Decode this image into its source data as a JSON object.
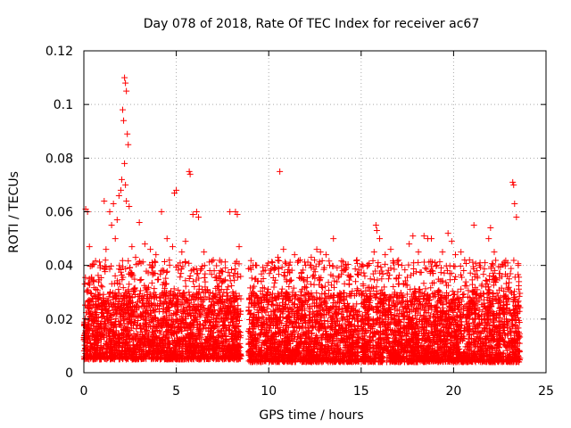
{
  "chart_data": {
    "type": "scatter",
    "title": "Day 078 of 2018, Rate Of TEC Index for receiver ac67",
    "xlabel": "GPS time / hours",
    "ylabel": "ROTI / TECUs",
    "xlim": [
      0,
      25
    ],
    "ylim": [
      0,
      0.12
    ],
    "x_ticks": [
      0,
      5,
      10,
      15,
      20,
      25
    ],
    "x_tick_labels": [
      "0",
      "5",
      "10",
      "15",
      "20",
      "25"
    ],
    "y_ticks": [
      0,
      0.02,
      0.04,
      0.06,
      0.08,
      0.1,
      0.12
    ],
    "y_tick_labels": [
      "0",
      "0.02",
      "0.04",
      "0.06",
      "0.08",
      "0.1",
      "0.12"
    ],
    "grid": true,
    "marker": "+",
    "series": [
      {
        "name": "ROTI",
        "color": "#ff0000",
        "points": [
          [
            0.1,
            0.061
          ],
          [
            0.2,
            0.06
          ],
          [
            0.3,
            0.047
          ],
          [
            0.5,
            0.034
          ],
          [
            0.8,
            0.028
          ],
          [
            1.0,
            0.032
          ],
          [
            1.1,
            0.064
          ],
          [
            1.2,
            0.046
          ],
          [
            1.4,
            0.06
          ],
          [
            1.5,
            0.055
          ],
          [
            1.6,
            0.063
          ],
          [
            1.7,
            0.05
          ],
          [
            1.8,
            0.057
          ],
          [
            1.9,
            0.066
          ],
          [
            2.0,
            0.068
          ],
          [
            2.05,
            0.072
          ],
          [
            2.1,
            0.098
          ],
          [
            2.15,
            0.094
          ],
          [
            2.2,
            0.11
          ],
          [
            2.25,
            0.108
          ],
          [
            2.3,
            0.105
          ],
          [
            2.35,
            0.089
          ],
          [
            2.4,
            0.085
          ],
          [
            2.2,
            0.078
          ],
          [
            2.25,
            0.07
          ],
          [
            2.3,
            0.064
          ],
          [
            2.45,
            0.062
          ],
          [
            2.6,
            0.047
          ],
          [
            2.8,
            0.043
          ],
          [
            3.0,
            0.056
          ],
          [
            3.3,
            0.048
          ],
          [
            3.6,
            0.046
          ],
          [
            3.9,
            0.044
          ],
          [
            4.2,
            0.06
          ],
          [
            4.5,
            0.05
          ],
          [
            4.8,
            0.047
          ],
          [
            4.9,
            0.067
          ],
          [
            5.0,
            0.068
          ],
          [
            5.3,
            0.045
          ],
          [
            5.5,
            0.049
          ],
          [
            5.7,
            0.075
          ],
          [
            5.75,
            0.074
          ],
          [
            5.9,
            0.059
          ],
          [
            6.1,
            0.06
          ],
          [
            6.2,
            0.058
          ],
          [
            6.5,
            0.045
          ],
          [
            7.0,
            0.042
          ],
          [
            7.4,
            0.035
          ],
          [
            7.8,
            0.032
          ],
          [
            7.9,
            0.06
          ],
          [
            8.2,
            0.06
          ],
          [
            8.3,
            0.059
          ],
          [
            8.4,
            0.047
          ],
          [
            9.6,
            0.034
          ],
          [
            9.9,
            0.04
          ],
          [
            10.2,
            0.041
          ],
          [
            10.5,
            0.043
          ],
          [
            10.6,
            0.075
          ],
          [
            10.8,
            0.046
          ],
          [
            11.1,
            0.04
          ],
          [
            11.4,
            0.044
          ],
          [
            11.7,
            0.042
          ],
          [
            12.0,
            0.04
          ],
          [
            12.3,
            0.043
          ],
          [
            12.6,
            0.046
          ],
          [
            12.8,
            0.045
          ],
          [
            13.1,
            0.044
          ],
          [
            13.3,
            0.04
          ],
          [
            13.5,
            0.05
          ],
          [
            13.8,
            0.036
          ],
          [
            14.0,
            0.038
          ],
          [
            14.4,
            0.036
          ],
          [
            14.7,
            0.034
          ],
          [
            15.2,
            0.036
          ],
          [
            15.5,
            0.035
          ],
          [
            15.7,
            0.045
          ],
          [
            15.8,
            0.055
          ],
          [
            15.85,
            0.053
          ],
          [
            16.0,
            0.05
          ],
          [
            16.3,
            0.044
          ],
          [
            16.6,
            0.046
          ],
          [
            16.9,
            0.035
          ],
          [
            17.2,
            0.04
          ],
          [
            17.6,
            0.048
          ],
          [
            17.8,
            0.051
          ],
          [
            18.1,
            0.045
          ],
          [
            18.4,
            0.051
          ],
          [
            18.6,
            0.05
          ],
          [
            18.8,
            0.05
          ],
          [
            19.1,
            0.04
          ],
          [
            19.4,
            0.045
          ],
          [
            19.7,
            0.052
          ],
          [
            19.9,
            0.049
          ],
          [
            20.1,
            0.044
          ],
          [
            20.4,
            0.045
          ],
          [
            20.6,
            0.042
          ],
          [
            21.0,
            0.03
          ],
          [
            21.1,
            0.055
          ],
          [
            21.4,
            0.04
          ],
          [
            21.7,
            0.041
          ],
          [
            21.9,
            0.05
          ],
          [
            22.0,
            0.054
          ],
          [
            22.2,
            0.045
          ],
          [
            22.5,
            0.037
          ],
          [
            22.9,
            0.036
          ],
          [
            23.0,
            0.035
          ],
          [
            23.2,
            0.071
          ],
          [
            23.25,
            0.07
          ],
          [
            23.3,
            0.063
          ],
          [
            23.4,
            0.058
          ],
          [
            23.5,
            0.04
          ]
        ],
        "segments": [
          {
            "x": [
              0.0,
              8.5
            ],
            "y_low": [
              0.005,
              0.03
            ]
          },
          {
            "x": [
              8.9,
              14.9
            ],
            "y_low": [
              0.004,
              0.03
            ]
          },
          {
            "x": [
              15.0,
              23.6
            ],
            "y_low": [
              0.004,
              0.03
            ]
          }
        ]
      }
    ]
  }
}
